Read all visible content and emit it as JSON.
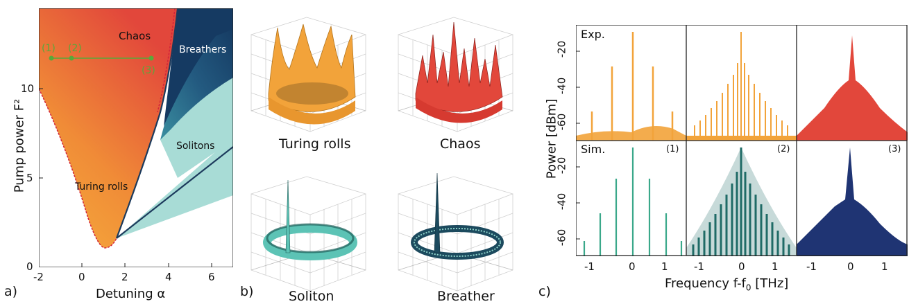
{
  "panel_a": {
    "letter": "a)",
    "xlabel": "Detuning α",
    "ylabel": "Pump power F²",
    "xticks": [
      "-2",
      "0",
      "2",
      "4",
      "6"
    ],
    "yticks": [
      "0",
      "5",
      "10"
    ],
    "regions": {
      "chaos": "Chaos",
      "breathers": "Breathers",
      "solitons": "Solitons",
      "turing": "Turing rolls"
    },
    "markers": [
      "(1)",
      "(2)",
      "(3)"
    ],
    "colors": {
      "turing": "#f2a33a",
      "chaos": "#e2473b",
      "soliton": "#a8dcd6",
      "breather": "#1c4a73",
      "marker": "#5aa83a"
    }
  },
  "panel_b": {
    "letter": "b)",
    "labels": [
      "Turing rolls",
      "Chaos",
      "Soliton",
      "Breather"
    ]
  },
  "panel_c": {
    "letter": "c)",
    "ylabel": "Power [dBm]",
    "xlabel": "Frequency f-f",
    "xlabel_sub": "0",
    "xlabel_unit": " [THz]",
    "row_labels": [
      "Exp.",
      "Sim."
    ],
    "cell_numbers": [
      "(1)",
      "(2)",
      "(3)"
    ],
    "yticks": [
      "-20",
      "-40",
      "-60"
    ],
    "xticks": [
      "-1",
      "0",
      "1"
    ],
    "colors": {
      "exp1": "#f2a33a",
      "exp2": "#f2a33a",
      "exp3": "#e2473b",
      "sim1": "#3aa88a",
      "sim2": "#1f6b66",
      "sim3": "#1f3473"
    }
  },
  "chart_data": [
    {
      "type": "area",
      "title": "",
      "xlabel": "Detuning α",
      "ylabel": "Pump power F²",
      "xlim": [
        -2,
        7
      ],
      "ylim": [
        0,
        14.5
      ],
      "regions": [
        "Chaos",
        "Breathers",
        "Solitons",
        "Turing rolls"
      ],
      "markers": [
        {
          "label": "(1)",
          "x": -1.4,
          "y": 12
        },
        {
          "label": "(2)",
          "x": -0.5,
          "y": 12
        },
        {
          "label": "(3)",
          "x": 3.3,
          "y": 12
        }
      ]
    },
    {
      "type": "bar",
      "title": "",
      "xlabel": "Frequency f-f0 [THz]",
      "ylabel": "Power [dBm]",
      "xlim": [
        -1.5,
        1.5
      ],
      "ylim": [
        -75,
        0
      ],
      "panels": [
        "Exp. (1)",
        "Exp. (2)",
        "Exp. (3)",
        "Sim. (1)",
        "Sim. (2)",
        "Sim. (3)"
      ]
    }
  ]
}
